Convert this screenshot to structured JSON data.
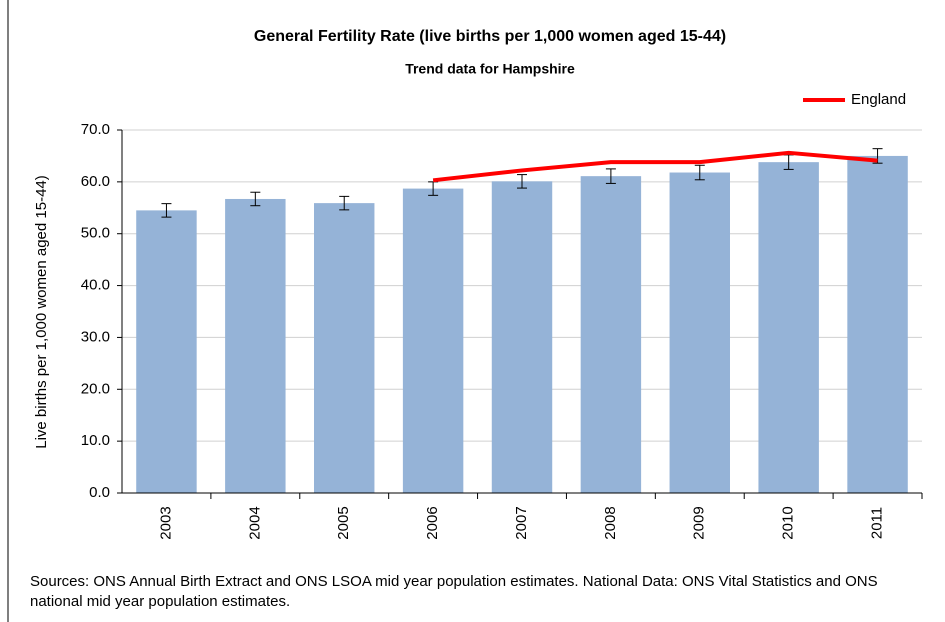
{
  "chart_data": {
    "type": "bar",
    "title": "General Fertility Rate (live births per 1,000 women aged 15-44)",
    "subtitle": "Trend data for Hampshire",
    "y_label": "Live births per 1,000 women aged 15-44)",
    "categories": [
      "2003",
      "2004",
      "2005",
      "2006",
      "2007",
      "2008",
      "2009",
      "2010",
      "2011"
    ],
    "series": [
      {
        "color": "#95b3d7",
        "values": [
          54.5,
          56.7,
          55.9,
          58.7,
          60.1,
          61.1,
          61.8,
          63.8,
          65.0
        ],
        "errors": [
          1.3,
          1.3,
          1.3,
          1.3,
          1.3,
          1.4,
          1.4,
          1.4,
          1.4
        ]
      },
      {
        "type": "line",
        "name": "England",
        "color": "#ff0000",
        "values": [
          null,
          null,
          null,
          60.3,
          62.2,
          63.8,
          63.8,
          65.6,
          64.1
        ]
      }
    ],
    "ylim": [
      0,
      70
    ],
    "yticks": [
      {
        "value": 0,
        "label": "0.0"
      },
      {
        "value": 10,
        "label": "10.0"
      },
      {
        "value": 20,
        "label": "20.0"
      },
      {
        "value": 30,
        "label": "30.0"
      },
      {
        "value": 40,
        "label": "40.0"
      },
      {
        "value": 50,
        "label": "50.0"
      },
      {
        "value": 60,
        "label": "60.0"
      },
      {
        "value": 70,
        "label": "70.0"
      }
    ],
    "grid": true,
    "legend": "top-right",
    "source": "Sources: ONS Annual Birth Extract and ONS LSOA mid year population estimates. National Data: ONS Vital Statistics and ONS national mid year population estimates."
  }
}
